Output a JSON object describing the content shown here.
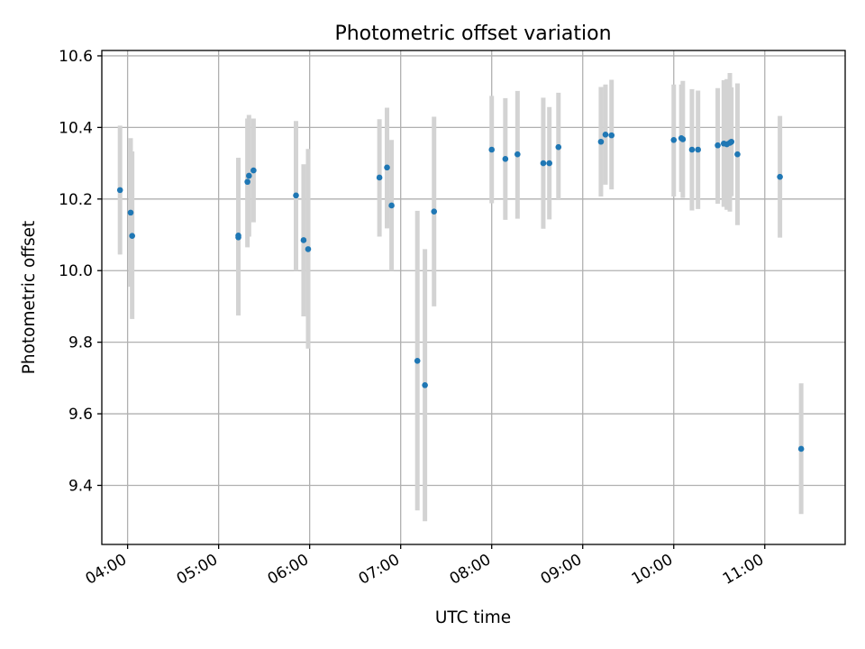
{
  "chart_data": {
    "type": "scatter",
    "title": "Photometric offset variation",
    "xlabel": "UTC time",
    "ylabel": "Photometric offset",
    "xlim": [
      "03:43",
      "11:53"
    ],
    "ylim": [
      9.235,
      10.615
    ],
    "x_ticks": [
      "04:00",
      "05:00",
      "06:00",
      "07:00",
      "08:00",
      "09:00",
      "10:00",
      "11:00"
    ],
    "y_ticks": [
      "9.4",
      "9.6",
      "9.8",
      "10.0",
      "10.2",
      "10.4",
      "10.6"
    ],
    "grid": true,
    "colors": {
      "point": "#1f77b4",
      "errorbar": "#d3d3d3",
      "grid": "#b0b0b0"
    },
    "points": [
      {
        "x": "03:55",
        "y": 10.225,
        "err_low": 10.045,
        "err_high": 10.405
      },
      {
        "x": "04:02",
        "y": 10.162,
        "err_low": 9.955,
        "err_high": 10.37
      },
      {
        "x": "04:03",
        "y": 10.097,
        "err_low": 9.865,
        "err_high": 10.333
      },
      {
        "x": "05:13",
        "y": 10.093,
        "err_low": 9.875,
        "err_high": 10.315
      },
      {
        "x": "05:13",
        "y": 10.098,
        "err_low": 9.875,
        "err_high": 10.315
      },
      {
        "x": "05:19",
        "y": 10.248,
        "err_low": 10.065,
        "err_high": 10.425
      },
      {
        "x": "05:20",
        "y": 10.265,
        "err_low": 10.095,
        "err_high": 10.435
      },
      {
        "x": "05:23",
        "y": 10.28,
        "err_low": 10.135,
        "err_high": 10.425
      },
      {
        "x": "05:51",
        "y": 10.21,
        "err_low": 10.0,
        "err_high": 10.418
      },
      {
        "x": "05:56",
        "y": 10.085,
        "err_low": 9.872,
        "err_high": 10.297
      },
      {
        "x": "05:59",
        "y": 10.06,
        "err_low": 9.782,
        "err_high": 10.34
      },
      {
        "x": "06:46",
        "y": 10.26,
        "err_low": 10.095,
        "err_high": 10.423
      },
      {
        "x": "06:51",
        "y": 10.288,
        "err_low": 10.118,
        "err_high": 10.455
      },
      {
        "x": "06:54",
        "y": 10.182,
        "err_low": 10.0,
        "err_high": 10.365
      },
      {
        "x": "07:11",
        "y": 9.748,
        "err_low": 9.33,
        "err_high": 10.167
      },
      {
        "x": "07:16",
        "y": 9.68,
        "err_low": 9.3,
        "err_high": 10.06
      },
      {
        "x": "07:22",
        "y": 10.165,
        "err_low": 9.9,
        "err_high": 10.43
      },
      {
        "x": "08:00",
        "y": 10.338,
        "err_low": 10.188,
        "err_high": 10.488
      },
      {
        "x": "08:09",
        "y": 10.312,
        "err_low": 10.142,
        "err_high": 10.482
      },
      {
        "x": "08:17",
        "y": 10.325,
        "err_low": 10.145,
        "err_high": 10.502
      },
      {
        "x": "08:34",
        "y": 10.3,
        "err_low": 10.117,
        "err_high": 10.483
      },
      {
        "x": "08:38",
        "y": 10.3,
        "err_low": 10.143,
        "err_high": 10.457
      },
      {
        "x": "08:44",
        "y": 10.345,
        "err_low": 10.197,
        "err_high": 10.497
      },
      {
        "x": "09:12",
        "y": 10.36,
        "err_low": 10.207,
        "err_high": 10.513
      },
      {
        "x": "09:15",
        "y": 10.38,
        "err_low": 10.24,
        "err_high": 10.52
      },
      {
        "x": "09:19",
        "y": 10.378,
        "err_low": 10.227,
        "err_high": 10.533
      },
      {
        "x": "10:00",
        "y": 10.365,
        "err_low": 10.207,
        "err_high": 10.52
      },
      {
        "x": "10:05",
        "y": 10.37,
        "err_low": 10.22,
        "err_high": 10.52
      },
      {
        "x": "10:06",
        "y": 10.367,
        "err_low": 10.203,
        "err_high": 10.53
      },
      {
        "x": "10:12",
        "y": 10.338,
        "err_low": 10.168,
        "err_high": 10.507
      },
      {
        "x": "10:16",
        "y": 10.338,
        "err_low": 10.172,
        "err_high": 10.503
      },
      {
        "x": "10:29",
        "y": 10.35,
        "err_low": 10.187,
        "err_high": 10.51
      },
      {
        "x": "10:33",
        "y": 10.355,
        "err_low": 10.178,
        "err_high": 10.532
      },
      {
        "x": "10:35",
        "y": 10.353,
        "err_low": 10.17,
        "err_high": 10.535
      },
      {
        "x": "10:37",
        "y": 10.357,
        "err_low": 10.165,
        "err_high": 10.552
      },
      {
        "x": "10:38",
        "y": 10.36,
        "err_low": 10.208,
        "err_high": 10.512
      },
      {
        "x": "10:42",
        "y": 10.325,
        "err_low": 10.127,
        "err_high": 10.523
      },
      {
        "x": "11:10",
        "y": 10.262,
        "err_low": 10.092,
        "err_high": 10.432
      },
      {
        "x": "11:24",
        "y": 9.502,
        "err_low": 9.32,
        "err_high": 9.685
      }
    ]
  }
}
